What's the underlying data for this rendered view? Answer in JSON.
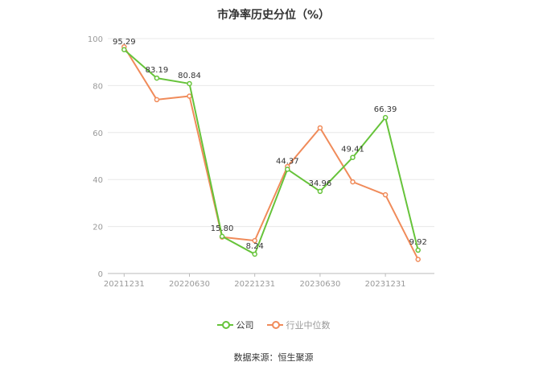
{
  "title": "市净率历史分位（%）",
  "source": "数据来源：恒生聚源",
  "legend": {
    "company": "公司",
    "industry": "行业中位数"
  },
  "colors": {
    "company": "#66c33a",
    "industry": "#f08b5a",
    "grid": "#e8e8e8",
    "axis": "#999999",
    "label": "#333333"
  },
  "chart_data": {
    "type": "line",
    "x": [
      "20211231",
      "20220331",
      "20220630",
      "20220930",
      "20221231",
      "20230331",
      "20230630",
      "20230930",
      "20231231",
      "20240331"
    ],
    "x_tick_labels": [
      "20211231",
      "20220630",
      "20221231",
      "20230630",
      "20231231"
    ],
    "ylim": [
      0,
      100
    ],
    "y_ticks": [
      0,
      20,
      40,
      60,
      80,
      100
    ],
    "grid": true,
    "legend_position": "bottom",
    "series": [
      {
        "name": "公司",
        "values": [
          95.29,
          83.19,
          80.84,
          15.8,
          8.24,
          44.37,
          34.96,
          49.41,
          66.39,
          9.92
        ],
        "labels": [
          "95.29",
          "83.19",
          "80.84",
          "15.80",
          "8.24",
          "44.37",
          "34.96",
          "49.41",
          "66.39",
          "9.92"
        ]
      },
      {
        "name": "行业中位数",
        "values": [
          96.5,
          74.0,
          75.5,
          15.5,
          14.0,
          45.5,
          62.0,
          39.0,
          33.5,
          6.0
        ]
      }
    ]
  }
}
